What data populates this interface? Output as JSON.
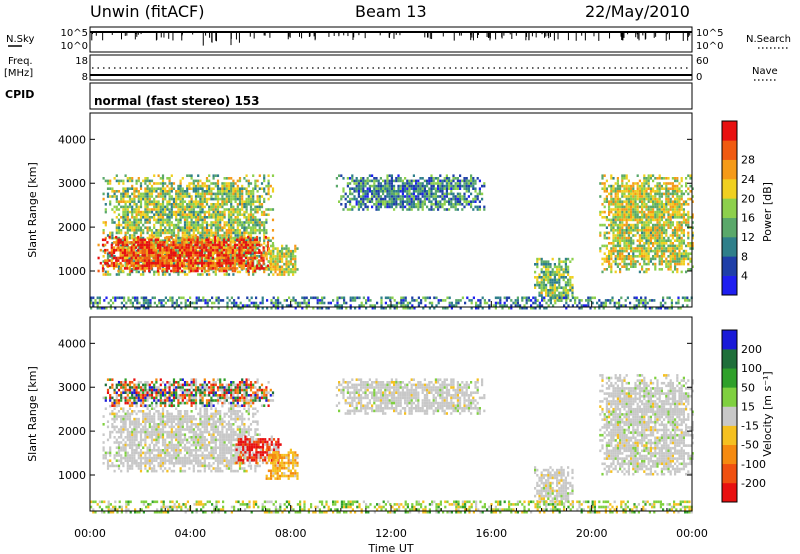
{
  "header": {
    "site": "Unwin (fitACF)",
    "beam": "Beam 13",
    "date": "22/May/2010"
  },
  "info_panel": {
    "left_labels": {
      "nsky": "N.Sky",
      "freq": "Freq.",
      "freq_unit": "[MHz]",
      "cpid": "CPID"
    },
    "right_labels": {
      "nsearch": "N.Search",
      "nave": "Nave"
    },
    "noise_ticks": {
      "top": "10^5",
      "bottom": "10^0"
    },
    "freq_ticks": {
      "top": "18",
      "bottom": "8"
    },
    "nave_ticks": {
      "top": "60",
      "bottom": "0"
    },
    "cpid_text": "normal (fast stereo) 153"
  },
  "chart_data": [
    {
      "type": "heatmap",
      "name": "power",
      "ylabel": "Slant Range [km]",
      "yticks": [
        "1000",
        "2000",
        "3000",
        "4000"
      ],
      "colorbar_label": "Power [dB]",
      "colorbar_ticks": [
        "4",
        "8",
        "12",
        "16",
        "20",
        "24",
        "28"
      ],
      "colorscale": [
        "#1f1ff0",
        "#1f3fa8",
        "#2f7f8a",
        "#5aa86a",
        "#8dd04c",
        "#f0d020",
        "#f59a18",
        "#f05a10",
        "#e81010"
      ],
      "regions": [
        {
          "t": [
            0.5,
            7.3
          ],
          "r": [
            900,
            3200
          ],
          "level": 0.5
        },
        {
          "t": [
            0.3,
            7.2
          ],
          "r": [
            1000,
            1800
          ],
          "level": 0.88
        },
        {
          "t": [
            7.0,
            8.3
          ],
          "r": [
            900,
            1600
          ],
          "level": 0.55
        },
        {
          "t": [
            9.8,
            15.7
          ],
          "r": [
            2400,
            3200
          ],
          "level": 0.3
        },
        {
          "t": [
            17.7,
            19.2
          ],
          "r": [
            300,
            1300
          ],
          "level": 0.45
        },
        {
          "t": [
            20.3,
            24
          ],
          "r": [
            1000,
            3200
          ],
          "level": 0.55
        },
        {
          "t": [
            0,
            24
          ],
          "r": [
            180,
            420
          ],
          "level": 0.3
        }
      ]
    },
    {
      "type": "heatmap",
      "name": "velocity",
      "ylabel": "Slant Range [km]",
      "yticks": [
        "1000",
        "2000",
        "3000",
        "4000"
      ],
      "xlabel": "Time UT",
      "xticks": [
        "00:00",
        "04:00",
        "08:00",
        "12:00",
        "16:00",
        "20:00",
        "00:00"
      ],
      "xlim": [
        0,
        24
      ],
      "ylim": [
        180,
        4600
      ],
      "colorbar_label": "Velocity [m s⁻¹]",
      "colorbar_ticks": [
        "200",
        "100",
        "50",
        "15",
        "-15",
        "-50",
        "-100",
        "-200"
      ],
      "colorscale": [
        "#1a1ad8",
        "#1f6f3a",
        "#2fa02a",
        "#7fd040",
        "#c8c8c8",
        "#f5c020",
        "#f58a10",
        "#f05010",
        "#e81010"
      ],
      "regions": [
        {
          "t": [
            0.5,
            6.8
          ],
          "r": [
            1100,
            2600
          ],
          "level": "gray"
        },
        {
          "t": [
            0.5,
            7.3
          ],
          "r": [
            2600,
            3200
          ],
          "level": "mixed"
        },
        {
          "t": [
            5.8,
            7.6
          ],
          "r": [
            1300,
            1900
          ],
          "level": "red"
        },
        {
          "t": [
            7.0,
            8.3
          ],
          "r": [
            900,
            1600
          ],
          "level": "orange"
        },
        {
          "t": [
            9.8,
            15.7
          ],
          "r": [
            2400,
            3200
          ],
          "level": "gray"
        },
        {
          "t": [
            17.7,
            19.2
          ],
          "r": [
            300,
            1200
          ],
          "level": "gray"
        },
        {
          "t": [
            20.3,
            24
          ],
          "r": [
            1000,
            3300
          ],
          "level": "gray"
        },
        {
          "t": [
            0,
            24
          ],
          "r": [
            180,
            420
          ],
          "level": "ground"
        }
      ]
    }
  ]
}
